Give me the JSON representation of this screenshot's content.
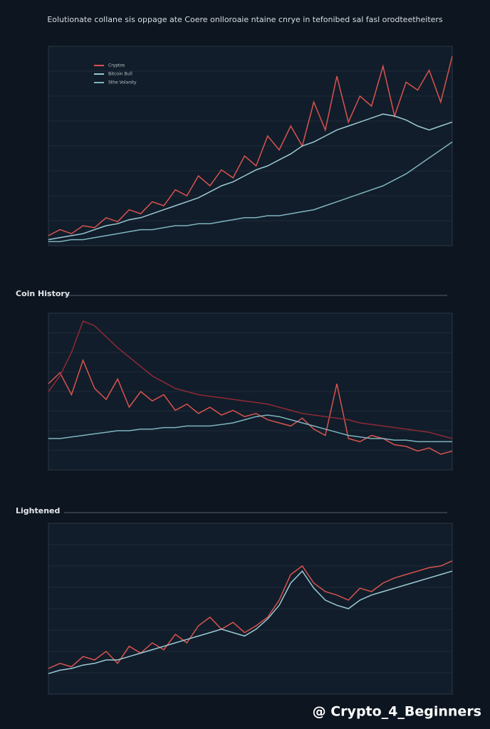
{
  "chart_data": [
    {
      "type": "line",
      "title": "Eolutionate collane sis oppage ate Coere onlloroaie ntaine cnrye in tefonibed sal fasl orodteetheiters",
      "ylim": [
        0,
        100
      ],
      "series": [
        {
          "name": "Cryptos",
          "color": "#d9534f",
          "values": [
            5,
            8,
            6,
            10,
            9,
            14,
            12,
            18,
            16,
            22,
            20,
            28,
            25,
            35,
            30,
            38,
            34,
            45,
            40,
            55,
            48,
            60,
            50,
            72,
            58,
            85,
            62,
            75,
            70,
            90,
            65,
            82,
            78,
            88,
            72,
            95
          ]
        },
        {
          "name": "Bitcoin Bull",
          "color": "#9cc9d6",
          "values": [
            3,
            4,
            5,
            6,
            8,
            10,
            11,
            13,
            14,
            16,
            18,
            20,
            22,
            24,
            27,
            30,
            32,
            35,
            38,
            40,
            43,
            46,
            50,
            52,
            55,
            58,
            60,
            62,
            64,
            66,
            65,
            63,
            60,
            58,
            60,
            62
          ]
        },
        {
          "name": "Sthe Volanity",
          "color": "#7fb3c0",
          "values": [
            2,
            2,
            3,
            3,
            4,
            5,
            6,
            7,
            8,
            8,
            9,
            10,
            10,
            11,
            11,
            12,
            13,
            14,
            14,
            15,
            15,
            16,
            17,
            18,
            20,
            22,
            24,
            26,
            28,
            30,
            33,
            36,
            40,
            44,
            48,
            52
          ]
        }
      ]
    },
    {
      "type": "line",
      "title": "Coin History",
      "ylim": [
        0,
        100
      ],
      "series": [
        {
          "color": "#d9534f",
          "values": [
            55,
            62,
            48,
            70,
            52,
            45,
            58,
            40,
            50,
            44,
            48,
            38,
            42,
            36,
            40,
            35,
            38,
            34,
            36,
            32,
            30,
            28,
            33,
            26,
            22,
            55,
            20,
            18,
            22,
            20,
            16,
            15,
            12,
            14,
            10,
            12
          ]
        },
        {
          "color": "#8e2a35",
          "values": [
            50,
            60,
            75,
            95,
            92,
            85,
            78,
            72,
            66,
            60,
            56,
            52,
            50,
            48,
            47,
            46,
            45,
            44,
            43,
            42,
            40,
            38,
            36,
            35,
            34,
            33,
            32,
            30,
            29,
            28,
            27,
            26,
            25,
            24,
            22,
            20
          ]
        },
        {
          "color": "#7fb3c0",
          "values": [
            20,
            20,
            21,
            22,
            23,
            24,
            25,
            25,
            26,
            26,
            27,
            27,
            28,
            28,
            28,
            29,
            30,
            32,
            34,
            35,
            34,
            32,
            30,
            28,
            26,
            24,
            22,
            21,
            20,
            20,
            19,
            19,
            18,
            18,
            18,
            18
          ]
        }
      ]
    },
    {
      "type": "line",
      "title": "Lightened",
      "ylim": [
        0,
        100
      ],
      "series": [
        {
          "color": "#d9534f",
          "values": [
            15,
            18,
            16,
            22,
            20,
            25,
            18,
            28,
            24,
            30,
            26,
            35,
            30,
            40,
            45,
            38,
            42,
            36,
            40,
            45,
            55,
            70,
            75,
            65,
            60,
            58,
            55,
            62,
            60,
            65,
            68,
            70,
            72,
            74,
            75,
            78
          ]
        },
        {
          "color": "#9cc9d6",
          "values": [
            12,
            14,
            15,
            17,
            18,
            20,
            20,
            22,
            24,
            26,
            28,
            30,
            32,
            34,
            36,
            38,
            36,
            34,
            38,
            44,
            52,
            65,
            72,
            62,
            55,
            52,
            50,
            55,
            58,
            60,
            62,
            64,
            66,
            68,
            70,
            72
          ]
        }
      ]
    }
  ],
  "watermark": "@ Crypto_4_Beginners"
}
